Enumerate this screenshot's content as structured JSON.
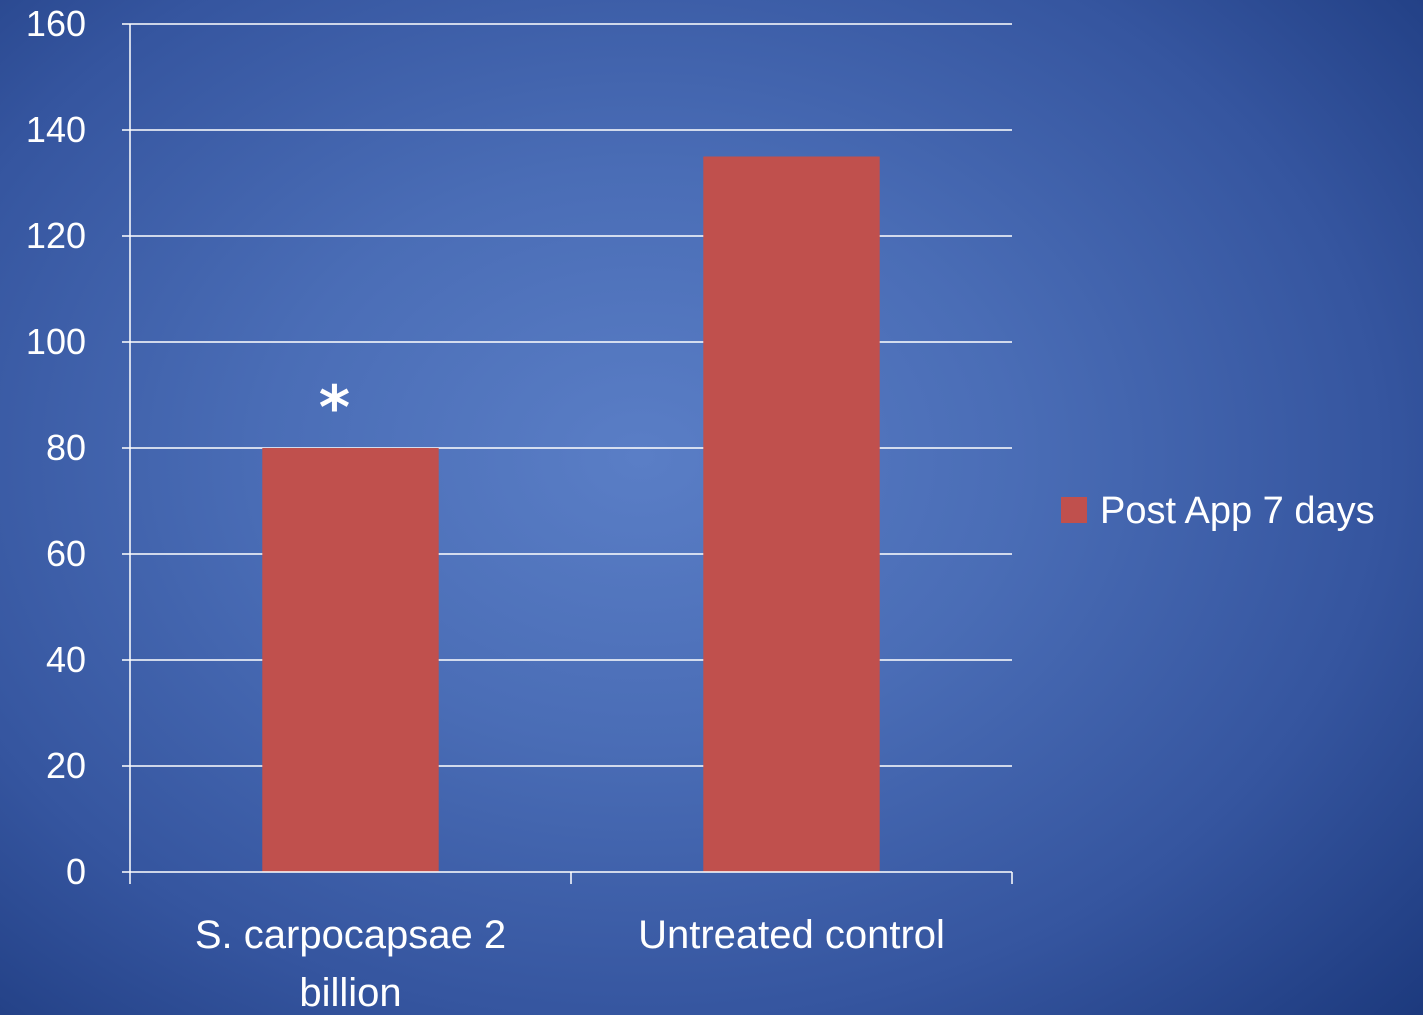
{
  "chart_data": {
    "type": "bar",
    "title": "",
    "xlabel": "",
    "ylabel": "",
    "categories": [
      "S. carpocapsae 2 billion",
      "Untreated control"
    ],
    "category_lines": [
      [
        "S. carpocapsae 2",
        "billion"
      ],
      [
        "Untreated control"
      ]
    ],
    "series": [
      {
        "name": "Post App 7 days",
        "values": [
          80,
          135
        ],
        "color": "#c0504d"
      }
    ],
    "ylim": [
      0,
      160
    ],
    "yticks": [
      "0",
      "20",
      "40",
      "60",
      "80",
      "100",
      "120",
      "140",
      "160"
    ],
    "grid": true,
    "legend_position": "right",
    "annotations": [
      {
        "category": "S. carpocapsae 2 billion",
        "text": "*"
      }
    ],
    "colors": {
      "axis": "#ffffff",
      "grid": "#ffffff",
      "text": "#ffffff",
      "background": "#4f74bd"
    }
  }
}
